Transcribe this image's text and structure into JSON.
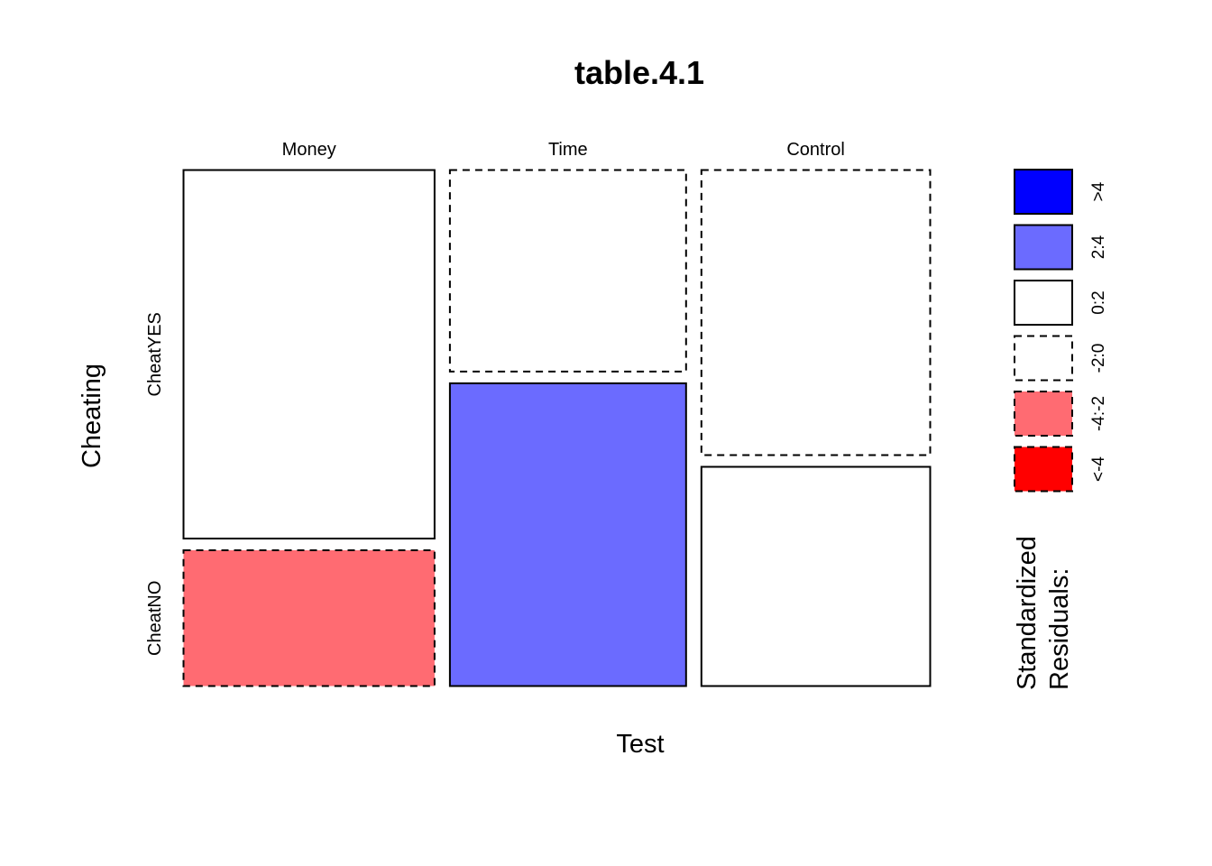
{
  "chart_data": {
    "type": "mosaic",
    "title": "table.4.1",
    "xlabel": "Test",
    "ylabel": "Cheating",
    "x_categories": [
      "Money",
      "Time",
      "Control"
    ],
    "y_categories": [
      "CheatYES",
      "CheatNO"
    ],
    "column_proportions": [
      0.34,
      0.32,
      0.31
    ],
    "cells": [
      {
        "x": "Money",
        "y": "CheatYES",
        "proportion": 0.73,
        "residual_class": "0:2"
      },
      {
        "x": "Money",
        "y": "CheatNO",
        "proportion": 0.27,
        "residual_class": "-4:-2"
      },
      {
        "x": "Time",
        "y": "CheatYES",
        "proportion": 0.4,
        "residual_class": "-2:0"
      },
      {
        "x": "Time",
        "y": "CheatNO",
        "proportion": 0.6,
        "residual_class": "2:4"
      },
      {
        "x": "Control",
        "y": "CheatYES",
        "proportion": 0.565,
        "residual_class": "-2:0"
      },
      {
        "x": "Control",
        "y": "CheatNO",
        "proportion": 0.435,
        "residual_class": "0:2"
      }
    ],
    "legend": {
      "title_lines": [
        "Standardized",
        "Residuals:"
      ],
      "placement": "right",
      "items": [
        {
          "label": ">4",
          "color": "#0000FF",
          "dashed": false
        },
        {
          "label": "2:4",
          "color": "#6B6BFF",
          "dashed": false
        },
        {
          "label": "0:2",
          "color": "#FFFFFF",
          "dashed": false
        },
        {
          "label": "-2:0",
          "color": "#FFFFFF",
          "dashed": true
        },
        {
          "label": "-4:-2",
          "color": "#FF6B72",
          "dashed": true
        },
        {
          "label": "<-4",
          "color": "#FF0000",
          "dashed": true
        }
      ]
    }
  }
}
